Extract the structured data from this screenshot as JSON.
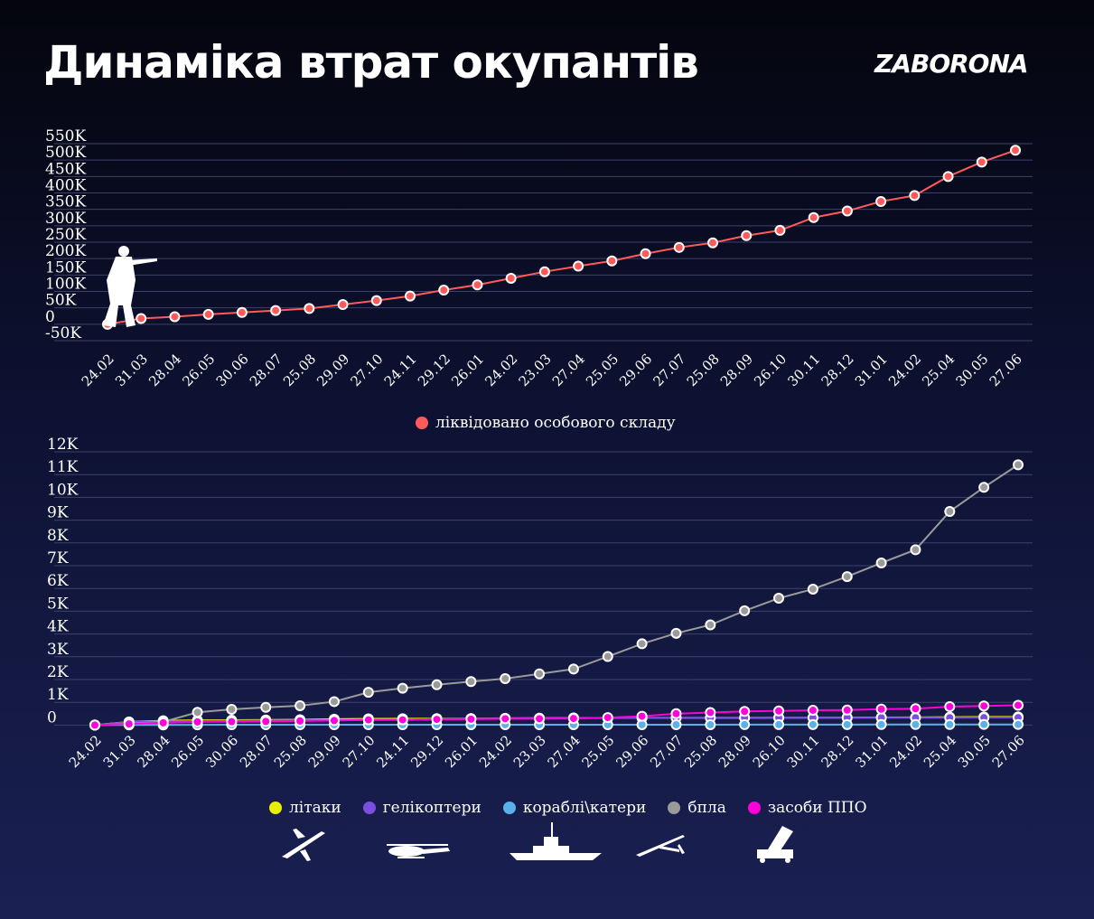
{
  "header": {
    "title": "Динаміка втрат окупантів",
    "logo": "ZABORONA"
  },
  "colors": {
    "personnel": "#ff5a5a",
    "aircraft": "#e8f000",
    "helicopters": "#7a4fe0",
    "ships": "#5ab0e8",
    "uav": "#9a9a9a",
    "air_defense": "#ff00d8",
    "grid": "#3c4268"
  },
  "dates": [
    "24.02",
    "31.03",
    "28.04",
    "26.05",
    "30.06",
    "28.07",
    "25.08",
    "29.09",
    "27.10",
    "24.11",
    "29.12",
    "26.01",
    "24.02",
    "23.03",
    "27.04",
    "25.05",
    "29.06",
    "27.07",
    "25.08",
    "28.09",
    "26.10",
    "30.11",
    "28.12",
    "31.01",
    "24.02",
    "25.04",
    "30.05",
    "27.06"
  ],
  "chart_data": [
    {
      "type": "line",
      "y_ticks": [
        "550K",
        "500K",
        "450K",
        "400K",
        "350K",
        "300K",
        "250K",
        "200K",
        "150K",
        "100K",
        "50K",
        "0",
        "-50K"
      ],
      "ylim": [
        -50000,
        550000
      ],
      "series": [
        {
          "name": "ліквідовано особового складу",
          "values": [
            0,
            17500,
            23000,
            30000,
            36000,
            42000,
            48000,
            60000,
            72000,
            86000,
            104000,
            120000,
            140000,
            160000,
            177000,
            193000,
            215000,
            234000,
            248000,
            270000,
            286000,
            325000,
            345000,
            374000,
            392000,
            450000,
            494000,
            530000
          ]
        }
      ]
    },
    {
      "type": "line",
      "y_ticks": [
        "12K",
        "11K",
        "10K",
        "9K",
        "8K",
        "7K",
        "6K",
        "5K",
        "4K",
        "3K",
        "2K",
        "1K",
        "0"
      ],
      "ylim": [
        -500,
        12000
      ],
      "series": [
        {
          "name": "літаки",
          "values": [
            0,
            140,
            190,
            210,
            215,
            225,
            234,
            260,
            274,
            280,
            283,
            286,
            301,
            305,
            314,
            315,
            316,
            316,
            316,
            319,
            321,
            325,
            329,
            333,
            340,
            347,
            358,
            360
          ]
        },
        {
          "name": "гелікоптери",
          "values": [
            0,
            130,
            155,
            175,
            185,
            195,
            202,
            216,
            222,
            233,
            268,
            285,
            287,
            293,
            307,
            311,
            315,
            319,
            321,
            324,
            324,
            324,
            324,
            325,
            325,
            325,
            326,
            327
          ]
        },
        {
          "name": "кораблі\\катери",
          "values": [
            0,
            7,
            8,
            13,
            15,
            15,
            15,
            15,
            16,
            16,
            16,
            18,
            18,
            18,
            18,
            18,
            18,
            18,
            18,
            20,
            22,
            22,
            23,
            24,
            25,
            26,
            28,
            28
          ]
        },
        {
          "name": "бпла",
          "values": [
            0,
            70,
            140,
            560,
            690,
            780,
            850,
            1030,
            1440,
            1620,
            1770,
            1910,
            2040,
            2250,
            2460,
            3010,
            3570,
            4030,
            4400,
            5020,
            5570,
            5970,
            6520,
            7120,
            7700,
            9380,
            10440,
            11430
          ]
        },
        {
          "name": "засоби ППО",
          "values": [
            0,
            50,
            100,
            140,
            150,
            160,
            180,
            200,
            230,
            230,
            250,
            260,
            280,
            280,
            290,
            330,
            390,
            500,
            550,
            600,
            620,
            650,
            660,
            700,
            720,
            810,
            840,
            870
          ]
        }
      ]
    }
  ]
}
